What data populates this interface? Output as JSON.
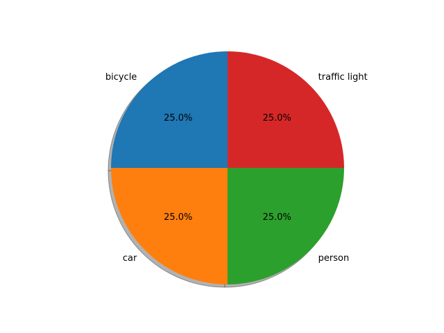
{
  "chart_data": {
    "type": "pie",
    "title": "",
    "categories": [
      "bicycle",
      "car",
      "person",
      "traffic light"
    ],
    "values": [
      25,
      25,
      25,
      25
    ],
    "percent_labels": [
      "25.0%",
      "25.0%",
      "25.0%",
      "25.0%"
    ],
    "colors": [
      "#1f77b4",
      "#ff7f0e",
      "#2ca02c",
      "#d62728"
    ],
    "start_angle_deg": 90,
    "direction": "counterclockwise",
    "shadow": true,
    "shadow_color": "#7f7f7f",
    "legend": "none",
    "grid": false
  }
}
